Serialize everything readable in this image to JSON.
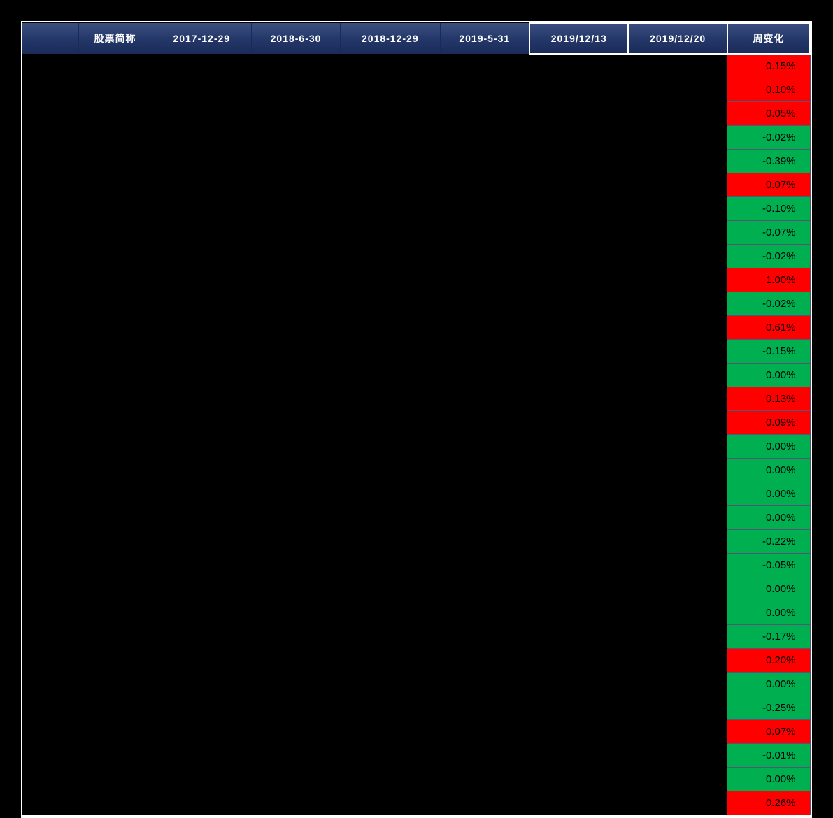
{
  "table": {
    "headers": [
      {
        "label": "股票简称",
        "emph": false
      },
      {
        "label": "2017-12-29",
        "emph": false
      },
      {
        "label": "2018-6-30",
        "emph": false
      },
      {
        "label": "2018-12-29",
        "emph": false
      },
      {
        "label": "2019-5-31",
        "emph": false
      },
      {
        "label": "2019/12/13",
        "emph": true
      },
      {
        "label": "2019/12/20",
        "emph": true
      },
      {
        "label": "周变化",
        "emph": true
      }
    ],
    "rows": [
      {
        "change": "0.15%",
        "positive": true
      },
      {
        "change": "0.10%",
        "positive": true
      },
      {
        "change": "0.05%",
        "positive": true
      },
      {
        "change": "-0.02%",
        "positive": false
      },
      {
        "change": "-0.39%",
        "positive": false
      },
      {
        "change": "0.07%",
        "positive": true
      },
      {
        "change": "-0.10%",
        "positive": false
      },
      {
        "change": "-0.07%",
        "positive": false
      },
      {
        "change": "-0.02%",
        "positive": false
      },
      {
        "change": "1.00%",
        "positive": true
      },
      {
        "change": "-0.02%",
        "positive": false
      },
      {
        "change": "0.61%",
        "positive": true
      },
      {
        "change": "-0.15%",
        "positive": false
      },
      {
        "change": "0.00%",
        "positive": false
      },
      {
        "change": "0.13%",
        "positive": true
      },
      {
        "change": "0.09%",
        "positive": true
      },
      {
        "change": "0.00%",
        "positive": false
      },
      {
        "change": "0.00%",
        "positive": false
      },
      {
        "change": "0.00%",
        "positive": false
      },
      {
        "change": "0.00%",
        "positive": false
      },
      {
        "change": "-0.22%",
        "positive": false
      },
      {
        "change": "-0.05%",
        "positive": false
      },
      {
        "change": "0.00%",
        "positive": false
      },
      {
        "change": "0.00%",
        "positive": false
      },
      {
        "change": "-0.17%",
        "positive": false
      },
      {
        "change": "0.20%",
        "positive": true
      },
      {
        "change": "0.00%",
        "positive": false
      },
      {
        "change": "-0.25%",
        "positive": false
      },
      {
        "change": "0.07%",
        "positive": true
      },
      {
        "change": "-0.01%",
        "positive": false
      },
      {
        "change": "0.00%",
        "positive": false
      },
      {
        "change": "0.26%",
        "positive": true
      }
    ],
    "colors": {
      "positive_bg": "#ff0000",
      "negative_bg": "#00b050",
      "header_gradient_top": "#3b4f7f",
      "header_gradient_bottom": "#1a2b58",
      "background": "#000000",
      "border": "#ffffff",
      "cell_border": "#555577",
      "header_text": "#ffffff",
      "cell_text": "#000000"
    },
    "font_sizes": {
      "header": 14,
      "cell": 15
    }
  }
}
